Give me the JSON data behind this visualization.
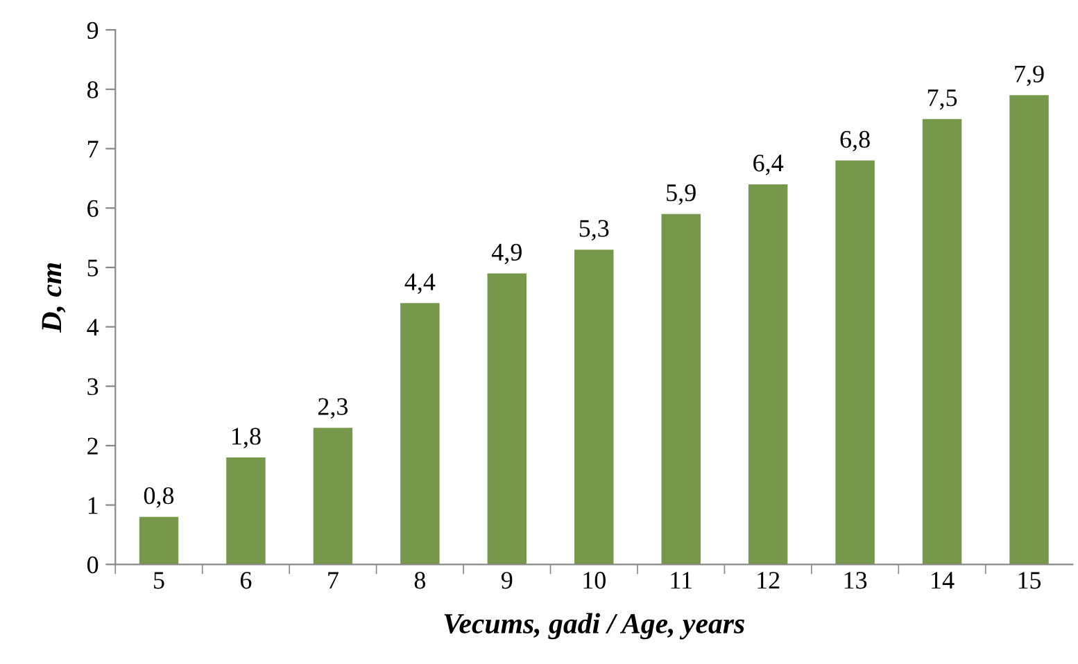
{
  "chart_data": {
    "type": "bar",
    "xlabel": "Vecums, gadi / Age, years",
    "ylabel": "D, cm",
    "categories": [
      "5",
      "6",
      "7",
      "8",
      "9",
      "10",
      "11",
      "12",
      "13",
      "14",
      "15"
    ],
    "values": [
      0.8,
      1.8,
      2.3,
      4.4,
      4.9,
      5.3,
      5.9,
      6.4,
      6.8,
      7.5,
      7.9
    ],
    "value_labels": [
      "0,8",
      "1,8",
      "2,3",
      "4,4",
      "4,9",
      "5,3",
      "5,9",
      "6,4",
      "6,8",
      "7,5",
      "7,9"
    ],
    "color": "#76984a",
    "ylim": [
      0,
      9
    ],
    "yticks": [
      0,
      1,
      2,
      3,
      4,
      5,
      6,
      7,
      8,
      9
    ],
    "grid": false
  }
}
